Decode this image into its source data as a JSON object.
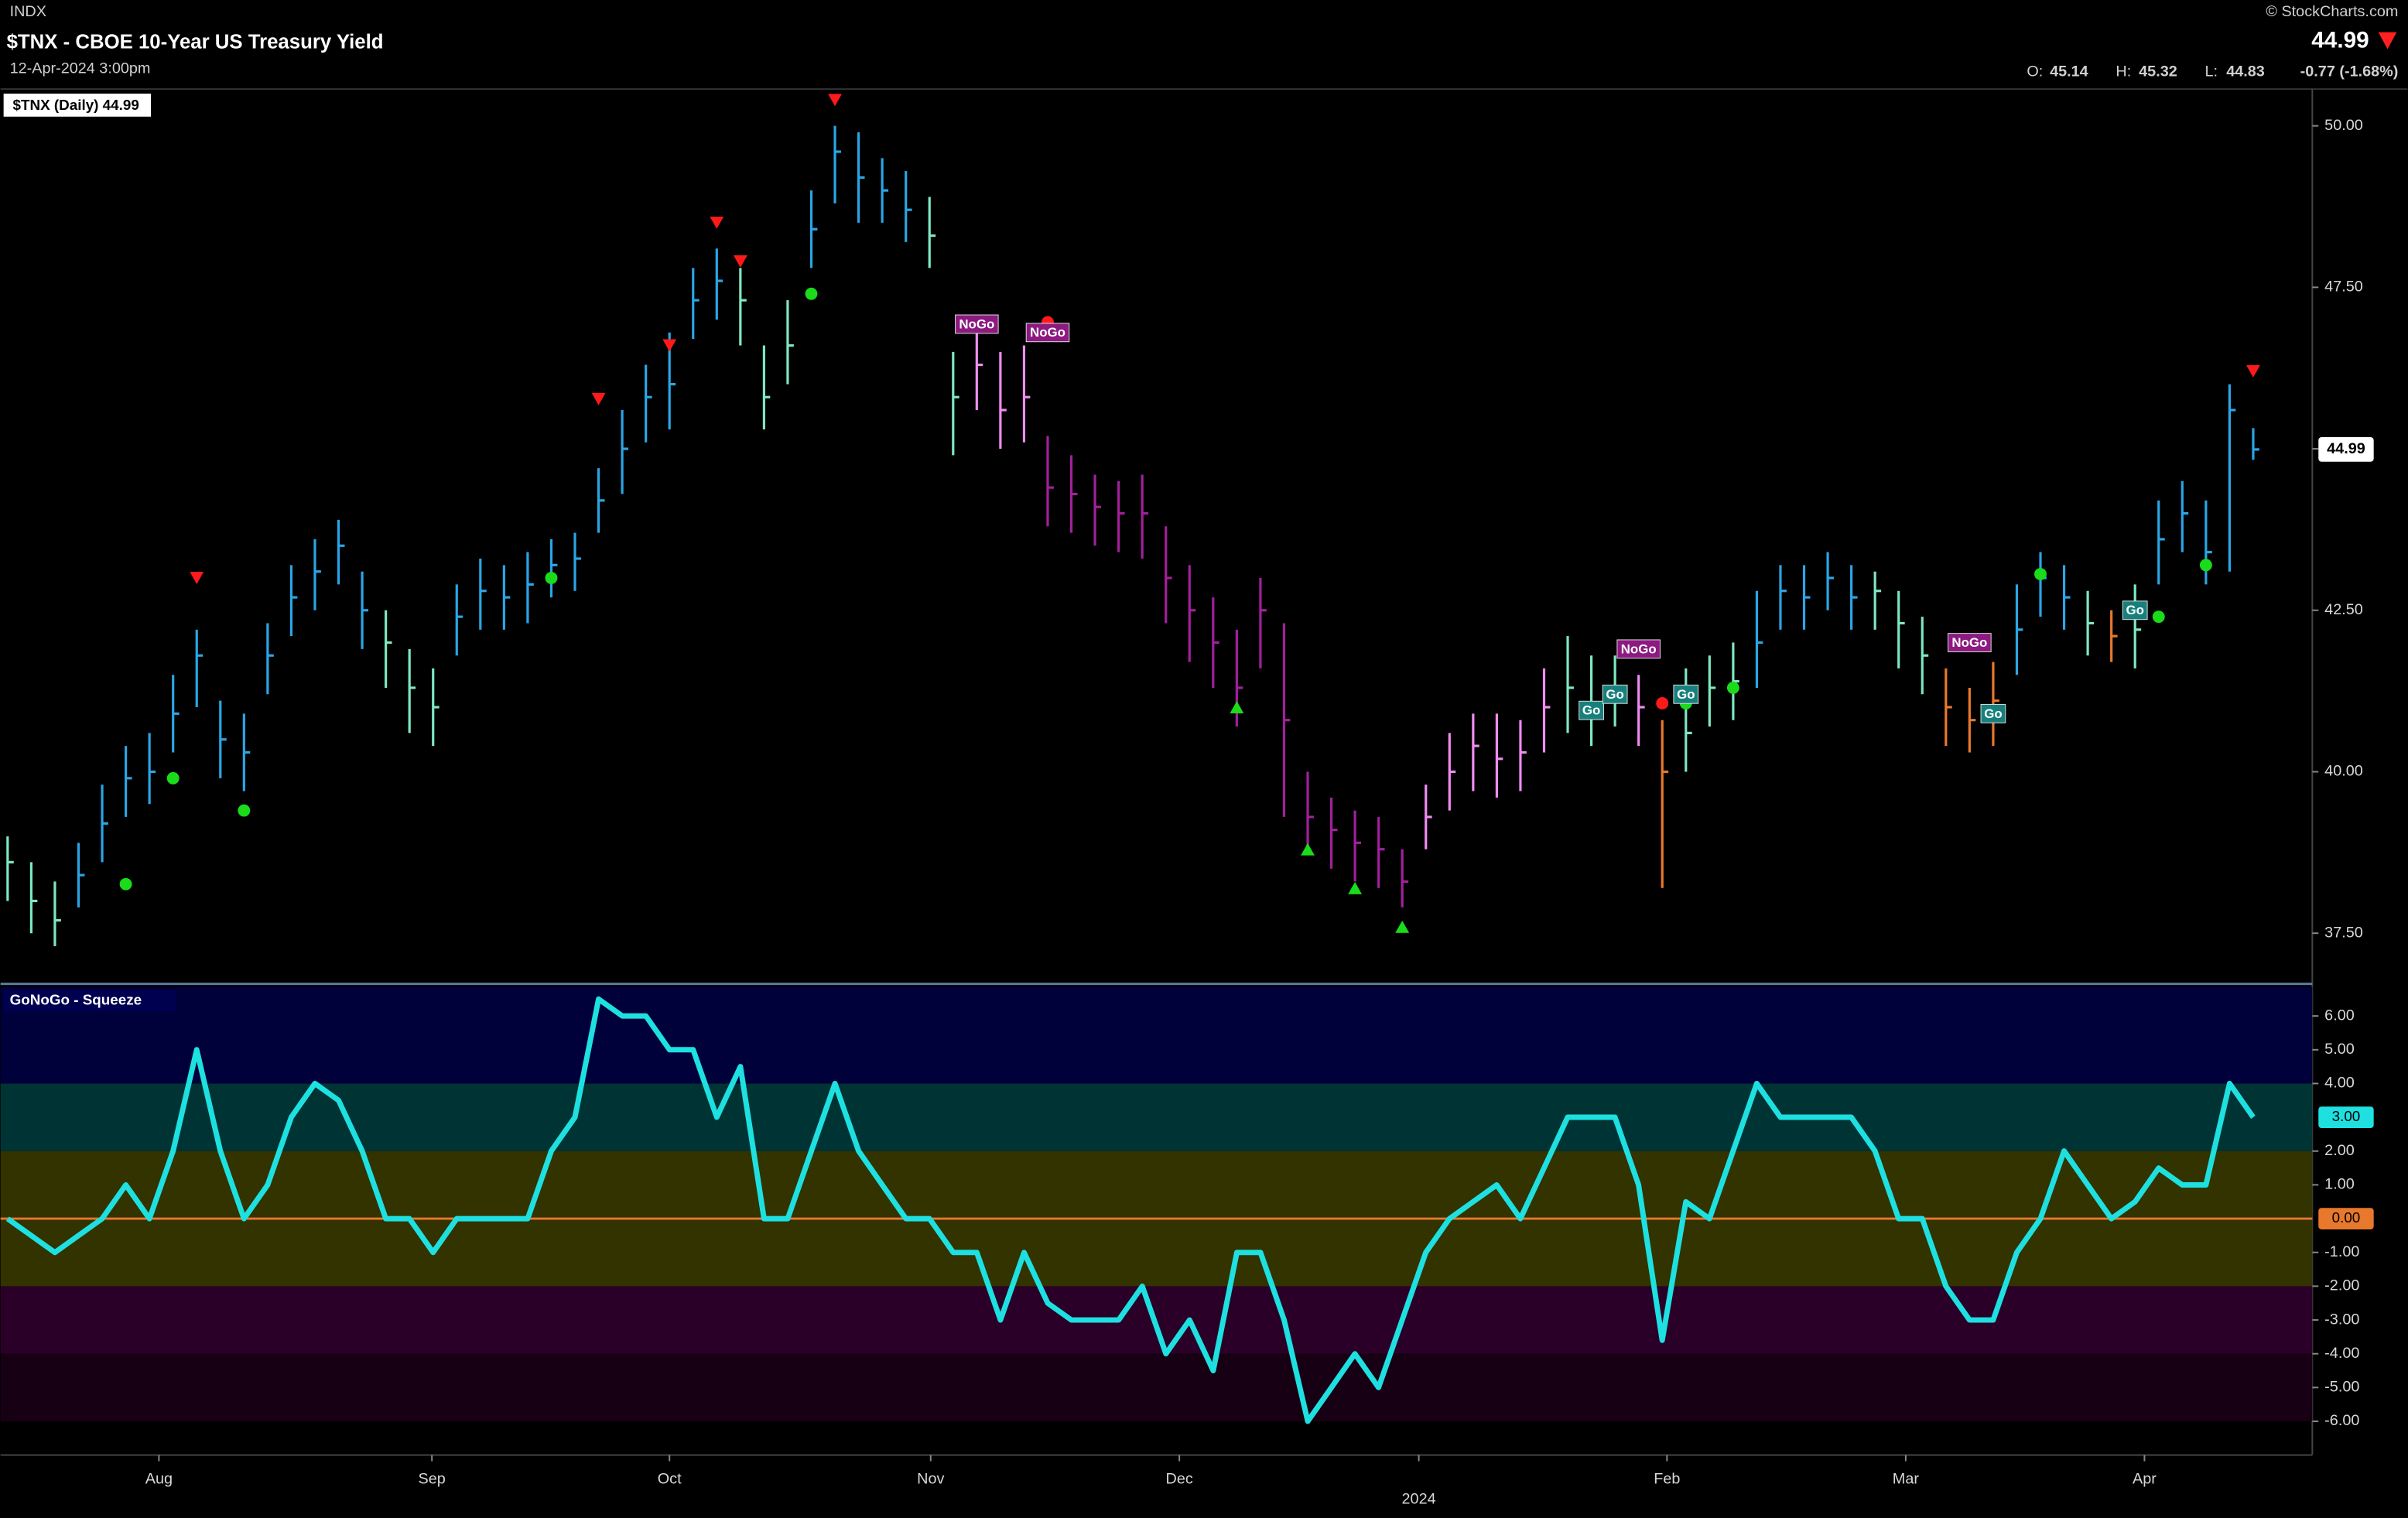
{
  "header": {
    "exchange": "INDX",
    "title": "$TNX - CBOE 10-Year US Treasury Yield",
    "date": "12-Apr-2024 3:00pm",
    "source": "© StockCharts.com",
    "last": 44.99,
    "open_label": "O:",
    "open": 45.14,
    "high_label": "H:",
    "high": 45.32,
    "low_label": "L:",
    "low": 44.83,
    "change": "-0.77 (-1.68%)"
  },
  "chart_data": [
    {
      "type": "ohlc",
      "legend": "$TNX (Daily) 44.99",
      "xlim": [
        -0.3,
        97.5
      ],
      "ylim": [
        36.74,
        50.57
      ],
      "yticks": [
        {
          "value": 37.5,
          "label": "37.50"
        },
        {
          "value": 40,
          "label": "40.00"
        },
        {
          "value": 42.5,
          "label": "42.50"
        },
        {
          "value": 45,
          "label": "45.00"
        },
        {
          "value": 47.5,
          "label": "47.50"
        },
        {
          "value": 50,
          "label": "50.00"
        }
      ],
      "last_value": 44.99,
      "high": [
        39.0,
        38.6,
        38.3,
        38.9,
        39.8,
        40.4,
        40.6,
        41.5,
        42.2,
        41.1,
        40.9,
        42.3,
        43.2,
        43.6,
        43.9,
        43.1,
        42.5,
        41.9,
        41.6,
        42.9,
        43.3,
        43.2,
        43.4,
        43.6,
        43.7,
        44.7,
        45.6,
        46.3,
        46.8,
        47.8,
        48.1,
        47.8,
        46.6,
        47.3,
        49.0,
        50.0,
        49.9,
        49.5,
        49.3,
        48.9,
        46.5,
        46.9,
        46.5,
        46.6,
        45.2,
        44.9,
        44.6,
        44.5,
        44.6,
        43.8,
        43.2,
        42.7,
        42.2,
        43.0,
        42.3,
        40.0,
        39.6,
        39.4,
        39.3,
        38.8,
        39.8,
        40.6,
        40.9,
        40.9,
        40.8,
        41.6,
        42.1,
        41.8,
        41.8,
        41.5,
        40.8,
        41.6,
        41.8,
        42.0,
        42.8,
        43.2,
        43.2,
        43.4,
        43.2,
        43.1,
        42.8,
        42.4,
        41.6,
        41.3,
        41.7,
        42.9,
        43.4,
        43.2,
        42.8,
        42.5,
        42.9,
        44.2,
        44.5,
        44.2,
        46.0,
        45.32
      ],
      "low": [
        38.0,
        37.5,
        37.3,
        37.9,
        38.6,
        39.3,
        39.5,
        40.3,
        41.0,
        39.9,
        39.7,
        41.2,
        42.1,
        42.5,
        42.9,
        41.9,
        41.3,
        40.6,
        40.4,
        41.8,
        42.2,
        42.2,
        42.3,
        42.7,
        42.8,
        43.7,
        44.3,
        45.1,
        45.3,
        46.7,
        47.0,
        46.6,
        45.3,
        46.0,
        47.8,
        48.8,
        48.5,
        48.5,
        48.2,
        47.8,
        44.9,
        45.6,
        45.0,
        45.1,
        43.8,
        43.7,
        43.5,
        43.4,
        43.3,
        42.3,
        41.7,
        41.3,
        40.7,
        41.6,
        39.3,
        38.8,
        38.5,
        38.3,
        38.2,
        37.9,
        38.8,
        39.4,
        39.7,
        39.6,
        39.7,
        40.3,
        40.6,
        40.4,
        40.7,
        40.4,
        38.2,
        40.0,
        40.7,
        40.8,
        41.3,
        42.2,
        42.2,
        42.5,
        42.2,
        42.2,
        41.6,
        41.2,
        40.4,
        40.3,
        40.4,
        41.5,
        42.4,
        42.2,
        41.8,
        41.7,
        41.6,
        42.9,
        43.4,
        42.9,
        43.1,
        44.83
      ],
      "close": [
        38.6,
        38.0,
        37.7,
        38.4,
        39.2,
        39.9,
        40.0,
        40.9,
        41.8,
        40.5,
        40.3,
        41.8,
        42.7,
        43.1,
        43.5,
        42.5,
        42.0,
        41.3,
        41.0,
        42.4,
        42.8,
        42.7,
        42.9,
        43.2,
        43.3,
        44.2,
        45.0,
        45.8,
        46.0,
        47.3,
        47.6,
        47.3,
        45.8,
        46.6,
        48.4,
        49.6,
        49.2,
        49.0,
        48.7,
        48.3,
        45.8,
        46.3,
        45.6,
        45.8,
        44.4,
        44.3,
        44.1,
        44.0,
        44.0,
        43.0,
        42.5,
        42.0,
        41.3,
        42.5,
        40.8,
        39.3,
        39.1,
        38.9,
        38.8,
        38.3,
        39.3,
        40.0,
        40.4,
        40.2,
        40.3,
        41.0,
        41.3,
        41.0,
        41.3,
        41.0,
        40.0,
        40.6,
        41.3,
        41.4,
        42.0,
        42.8,
        42.7,
        43.0,
        42.7,
        42.8,
        42.3,
        41.8,
        41.0,
        40.8,
        41.1,
        42.2,
        43.0,
        42.7,
        42.3,
        42.1,
        42.2,
        43.6,
        44.0,
        43.4,
        45.6,
        44.99
      ],
      "colors": [
        "#7ee8c0",
        "#7ee8c0",
        "#7ee8c0",
        "#2aa6e6",
        "#2aa6e6",
        "#2aa6e6",
        "#2aa6e6",
        "#2aa6e6",
        "#2aa6e6",
        "#2aa6e6",
        "#2aa6e6",
        "#2aa6e6",
        "#2aa6e6",
        "#2aa6e6",
        "#2aa6e6",
        "#2aa6e6",
        "#7ee8c0",
        "#7ee8c0",
        "#7ee8c0",
        "#2aa6e6",
        "#2aa6e6",
        "#2aa6e6",
        "#2aa6e6",
        "#2aa6e6",
        "#2aa6e6",
        "#2aa6e6",
        "#2aa6e6",
        "#2aa6e6",
        "#2aa6e6",
        "#2aa6e6",
        "#2aa6e6",
        "#7ee8c0",
        "#7ee8c0",
        "#7ee8c0",
        "#2aa6e6",
        "#2aa6e6",
        "#2aa6e6",
        "#2aa6e6",
        "#2aa6e6",
        "#7ee8c0",
        "#7ee8c0",
        "#f08cf0",
        "#f08cf0",
        "#f08cf0",
        "#a2209c",
        "#a2209c",
        "#a2209c",
        "#a2209c",
        "#a2209c",
        "#a2209c",
        "#a2209c",
        "#a2209c",
        "#a2209c",
        "#a2209c",
        "#a2209c",
        "#a2209c",
        "#a2209c",
        "#a2209c",
        "#a2209c",
        "#a2209c",
        "#f08cf0",
        "#f08cf0",
        "#f08cf0",
        "#f08cf0",
        "#f08cf0",
        "#f08cf0",
        "#7ee8c0",
        "#7ee8c0",
        "#7ee8c0",
        "#f08cf0",
        "#e8782c",
        "#7ee8c0",
        "#7ee8c0",
        "#7ee8c0",
        "#2aa6e6",
        "#2aa6e6",
        "#2aa6e6",
        "#2aa6e6",
        "#2aa6e6",
        "#7ee8c0",
        "#7ee8c0",
        "#7ee8c0",
        "#e8782c",
        "#e8782c",
        "#e8782c",
        "#2aa6e6",
        "#2aa6e6",
        "#2aa6e6",
        "#7ee8c0",
        "#e8782c",
        "#7ee8c0",
        "#2aa6e6",
        "#2aa6e6",
        "#2aa6e6",
        "#2aa6e6",
        "#2aa6e6"
      ],
      "signals": [
        {
          "x": 8,
          "value": 43.0,
          "kind": "down",
          "color": "#ff1a1a"
        },
        {
          "x": 25,
          "value": 45.77,
          "kind": "down",
          "color": "#ff1a1a"
        },
        {
          "x": 28,
          "value": 46.6,
          "kind": "down",
          "color": "#ff1a1a"
        },
        {
          "x": 30,
          "value": 48.5,
          "kind": "down",
          "color": "#ff1a1a"
        },
        {
          "x": 31,
          "value": 47.9,
          "kind": "down",
          "color": "#ff1a1a"
        },
        {
          "x": 35,
          "value": 50.4,
          "kind": "down",
          "color": "#ff1a1a"
        },
        {
          "x": 95,
          "value": 46.2,
          "kind": "down",
          "color": "#ff1a1a"
        },
        {
          "x": 52,
          "value": 41.0,
          "kind": "up",
          "color": "#1adc1a"
        },
        {
          "x": 55,
          "value": 38.8,
          "kind": "up",
          "color": "#1adc1a"
        },
        {
          "x": 57,
          "value": 38.2,
          "kind": "up",
          "color": "#1adc1a"
        },
        {
          "x": 59,
          "value": 37.6,
          "kind": "up",
          "color": "#1adc1a"
        },
        {
          "x": 5,
          "value": 38.26,
          "kind": "dot",
          "color": "#1adc1a"
        },
        {
          "x": 7,
          "value": 39.9,
          "kind": "dot",
          "color": "#1adc1a"
        },
        {
          "x": 10,
          "value": 39.4,
          "kind": "dot",
          "color": "#1adc1a"
        },
        {
          "x": 23,
          "value": 43.0,
          "kind": "dot",
          "color": "#1adc1a"
        },
        {
          "x": 34,
          "value": 47.4,
          "kind": "dot",
          "color": "#1adc1a"
        },
        {
          "x": 71,
          "value": 41.06,
          "kind": "dot",
          "color": "#1adc1a"
        },
        {
          "x": 73,
          "value": 41.3,
          "kind": "dot",
          "color": "#1adc1a"
        },
        {
          "x": 86,
          "value": 43.06,
          "kind": "dot",
          "color": "#1adc1a"
        },
        {
          "x": 91,
          "value": 42.4,
          "kind": "dot",
          "color": "#1adc1a"
        },
        {
          "x": 93,
          "value": 43.2,
          "kind": "dot",
          "color": "#1adc1a"
        },
        {
          "x": 44,
          "value": 46.96,
          "kind": "dot",
          "color": "#ff1a1a"
        },
        {
          "x": 70,
          "value": 41.06,
          "kind": "dot",
          "color": "#ff1a1a"
        },
        {
          "x": 41,
          "value": 46.93,
          "kind": "box",
          "color": "#8c1a80",
          "label": "NoGo"
        },
        {
          "x": 44,
          "value": 46.8,
          "kind": "box",
          "color": "#8c1a80",
          "label": "NoGo"
        },
        {
          "x": 69,
          "value": 41.9,
          "kind": "box",
          "color": "#8c1a80",
          "label": "NoGo"
        },
        {
          "x": 67,
          "value": 40.95,
          "kind": "box",
          "color": "#17807c",
          "label": "Go"
        },
        {
          "x": 68,
          "value": 41.2,
          "kind": "box",
          "color": "#17807c",
          "label": "Go"
        },
        {
          "x": 71,
          "value": 41.2,
          "kind": "box",
          "color": "#17807c",
          "label": "Go"
        },
        {
          "x": 83,
          "value": 42.0,
          "kind": "box",
          "color": "#8c1a80",
          "label": "NoGo"
        },
        {
          "x": 84,
          "value": 40.9,
          "kind": "box",
          "color": "#17807c",
          "label": "Go"
        },
        {
          "x": 90,
          "value": 42.5,
          "kind": "box",
          "color": "#17807c",
          "label": "Go"
        }
      ]
    },
    {
      "type": "line",
      "title": "GoNoGo - Squeeze",
      "xlim": [
        -0.3,
        97.5
      ],
      "xticks": [
        {
          "value": 6.4,
          "label": "Aug"
        },
        {
          "value": 17.95,
          "label": "Sep"
        },
        {
          "value": 28.0,
          "label": "Oct"
        },
        {
          "value": 39.05,
          "label": "Nov"
        },
        {
          "value": 49.57,
          "label": "Dec"
        },
        {
          "value": 70.2,
          "label": "Feb"
        },
        {
          "value": 80.3,
          "label": "Mar"
        },
        {
          "value": 90.4,
          "label": "Apr"
        }
      ],
      "year_ticks": [
        {
          "value": 59.7,
          "label": "2024"
        }
      ],
      "ylim": [
        -7.0,
        6.86
      ],
      "yticks": [
        {
          "value": 6,
          "label": "6.00"
        },
        {
          "value": 5,
          "label": "5.00"
        },
        {
          "value": 4,
          "label": "4.00"
        },
        {
          "value": 2,
          "label": "2.00"
        },
        {
          "value": 1,
          "label": "1.00"
        },
        {
          "value": -1,
          "label": "-1.00"
        },
        {
          "value": -2,
          "label": "-2.00"
        },
        {
          "value": -3,
          "label": "-3.00"
        },
        {
          "value": -4,
          "label": "-4.00"
        },
        {
          "value": -5,
          "label": "-5.00"
        },
        {
          "value": -6,
          "label": "-6.00"
        }
      ],
      "zero_line": {
        "value": 0,
        "label": "0.00",
        "color": "#e8782c"
      },
      "last_value": {
        "value": 3,
        "label": "3.00"
      },
      "series": [
        {
          "color": "#1ee0e0",
          "values": [
            0,
            -0.5,
            -1,
            -0.5,
            0,
            1,
            0,
            2,
            5,
            2,
            0,
            1,
            3,
            4,
            3.5,
            2,
            0,
            0,
            -1,
            0,
            0,
            0,
            0,
            2,
            3,
            6.5,
            6,
            6,
            5,
            5,
            3,
            4.5,
            0,
            0,
            2,
            4,
            2,
            1,
            0,
            0,
            -1,
            -1,
            -3,
            -1,
            -2.5,
            -3,
            -3,
            -3,
            -2,
            -4,
            -3,
            -4.5,
            -1,
            -1,
            -3,
            -6,
            -5,
            -4,
            -5,
            -3,
            -1,
            0,
            0.5,
            1,
            0,
            1.5,
            3,
            3,
            3,
            1,
            -3.6,
            0.5,
            0,
            2,
            4,
            3,
            3,
            3,
            3,
            2,
            0,
            0,
            -2,
            -3,
            -3,
            -1,
            0,
            2,
            1,
            0,
            0.5,
            1.5,
            1,
            1,
            4,
            3
          ]
        }
      ]
    }
  ]
}
